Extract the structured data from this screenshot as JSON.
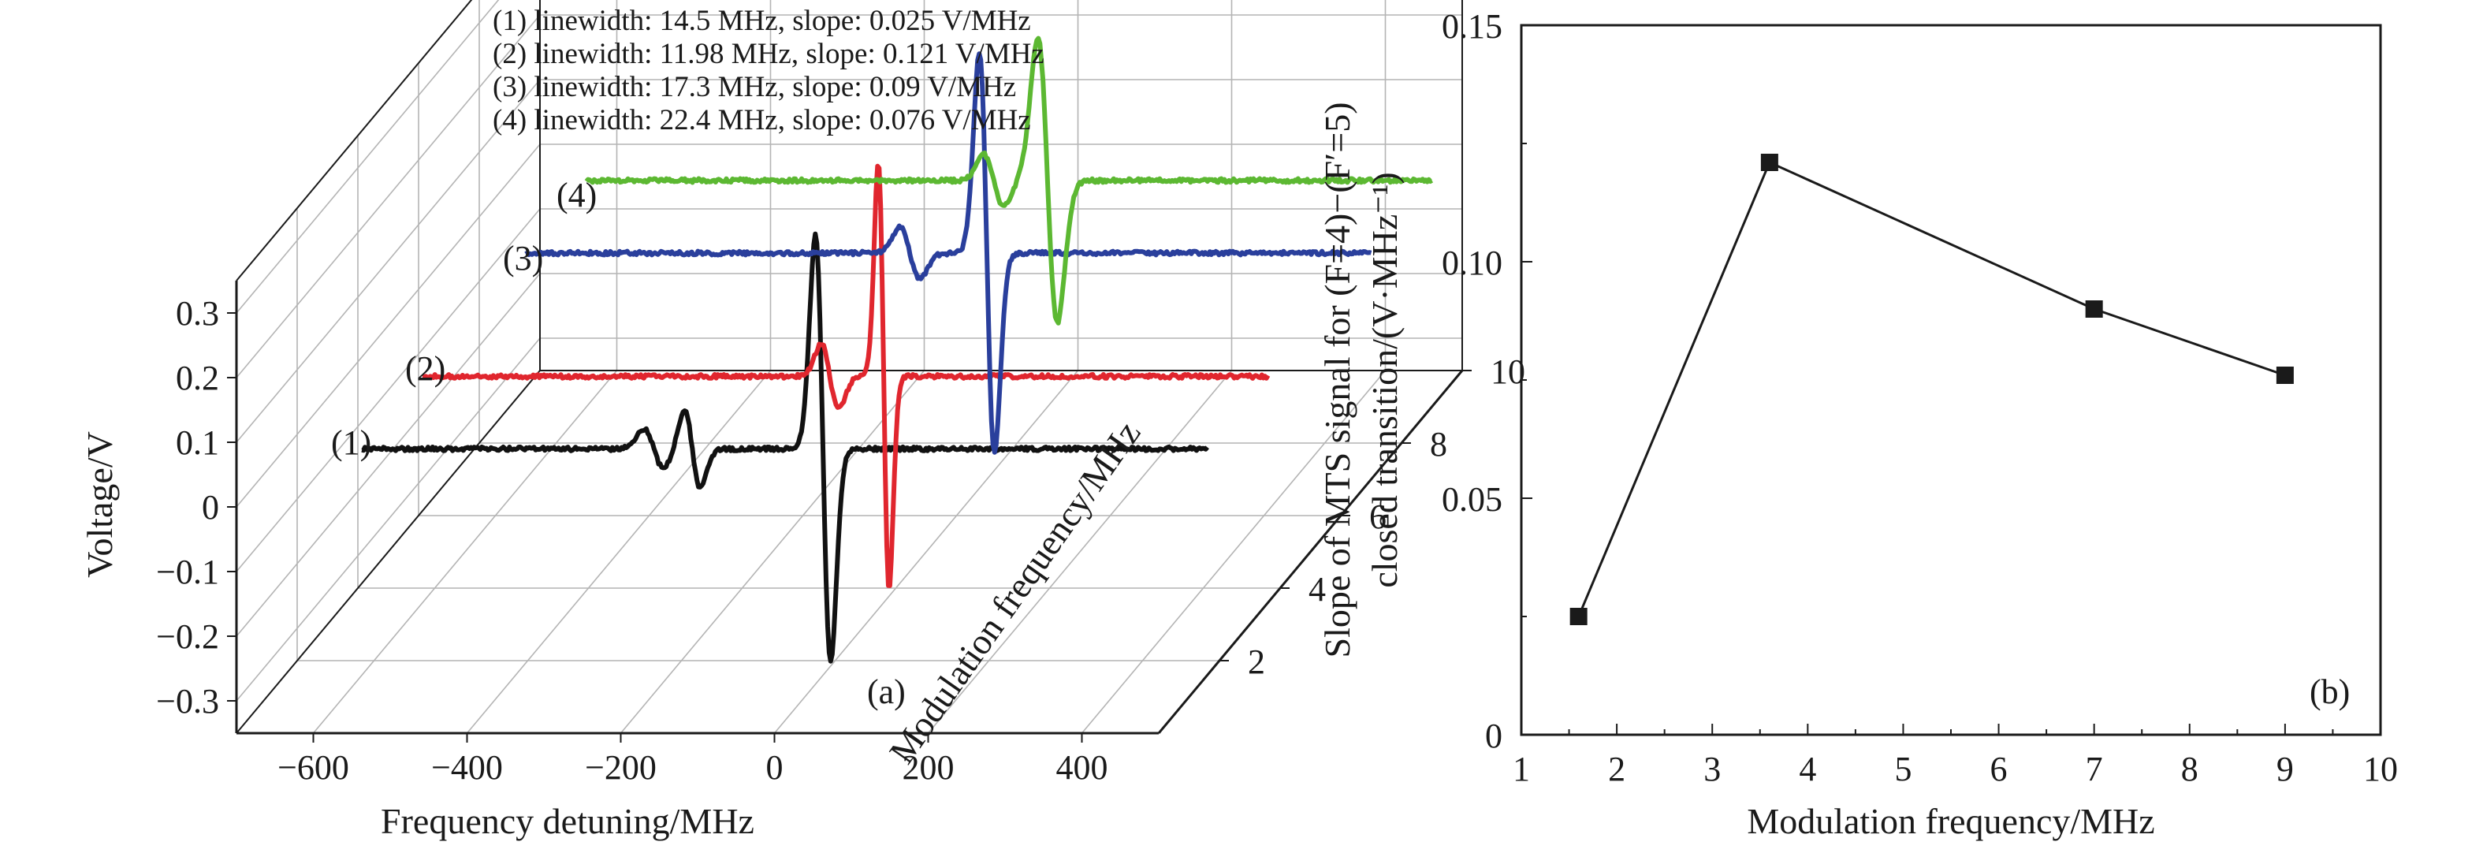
{
  "chart_data": [
    {
      "type": "line",
      "panel_label": "(a)",
      "xlabel": "Frequency detuning/MHz",
      "ylabel": "Voltage/V",
      "zlabel": "Modulation frequency/MHz",
      "xlim": [
        -700,
        500
      ],
      "ylim": [
        -0.35,
        0.35
      ],
      "zlim": [
        0,
        10
      ],
      "x_ticks": [
        "-600",
        "-400",
        "-200",
        "0",
        "200",
        "400"
      ],
      "y_ticks": [
        "-0.3",
        "-0.2",
        "-0.1",
        "0",
        "0.1",
        "0.2",
        "0.3"
      ],
      "z_ticks": [
        "2",
        "4",
        "6",
        "8",
        "10"
      ],
      "annotations": [
        "(1) linewidth: 14.5 MHz, slope: 0.025 V/MHz",
        "(2) linewidth: 11.98 MHz, slope: 0.121 V/MHz",
        "(3) linewidth: 17.3 MHz, slope: 0.09 V/MHz",
        "(4) linewidth: 22.4 MHz, slope: 0.076 V/MHz"
      ],
      "series": [
        {
          "name": "(1)",
          "color": "#111111",
          "modulation_frequency": 1.6,
          "features": [
            {
              "x": -220,
              "amp": 0.03,
              "w": 18
            },
            {
              "x": -170,
              "amp": 0.06,
              "w": 15
            },
            {
              "x": 0,
              "amp": 0.33,
              "w": 14
            }
          ]
        },
        {
          "name": "(2)",
          "color": "#e0262e",
          "modulation_frequency": 3.6,
          "features": [
            {
              "x": -70,
              "amp": 0.05,
              "w": 16
            },
            {
              "x": 0,
              "amp": 0.33,
              "w": 10
            }
          ]
        },
        {
          "name": "(3)",
          "color": "#2a3f9c",
          "modulation_frequency": 7,
          "features": [
            {
              "x": -100,
              "amp": 0.04,
              "w": 18
            },
            {
              "x": 0,
              "amp": 0.31,
              "w": 14
            }
          ]
        },
        {
          "name": "(4)",
          "color": "#5cb832",
          "modulation_frequency": 9,
          "features": [
            {
              "x": -70,
              "amp": 0.04,
              "w": 18
            },
            {
              "x": 0,
              "amp": 0.22,
              "w": 18
            }
          ]
        }
      ]
    },
    {
      "type": "line",
      "panel_label": "(b)",
      "xlabel": "Modulation frequency/MHz",
      "ylabel_line1": "Slope of MTS signal for (F=4)−(F′=5)",
      "ylabel_line2": "closed transition/(V·MHz⁻¹)",
      "xlim": [
        1,
        10
      ],
      "ylim": [
        0,
        0.15
      ],
      "x_ticks": [
        "1",
        "2",
        "3",
        "4",
        "5",
        "6",
        "7",
        "8",
        "9",
        "10"
      ],
      "y_ticks": [
        "0",
        "0.05",
        "0.10",
        "0.15"
      ],
      "marker": "square",
      "x": [
        1.6,
        3.6,
        7,
        9
      ],
      "y": [
        0.025,
        0.121,
        0.09,
        0.076
      ]
    }
  ]
}
